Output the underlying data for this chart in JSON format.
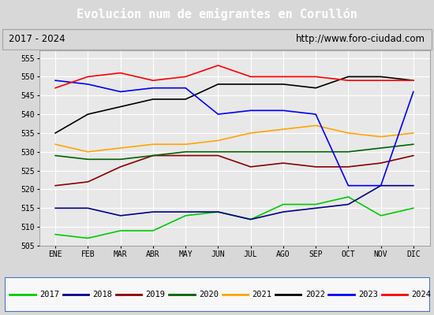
{
  "title": "Evolucion num de emigrantes en Corullón",
  "subtitle_left": "2017 - 2024",
  "subtitle_right": "http://www.foro-ciudad.com",
  "months": [
    "ENE",
    "FEB",
    "MAR",
    "ABR",
    "MAY",
    "JUN",
    "JUL",
    "AGO",
    "SEP",
    "OCT",
    "NOV",
    "DIC"
  ],
  "ylim": [
    505,
    557
  ],
  "yticks": [
    505,
    510,
    515,
    520,
    525,
    530,
    535,
    540,
    545,
    550,
    555
  ],
  "series": {
    "2017": {
      "color": "#00cc00",
      "data": [
        508,
        507,
        509,
        509,
        513,
        514,
        512,
        516,
        516,
        518,
        513,
        515
      ]
    },
    "2018": {
      "color": "#00008b",
      "data": [
        515,
        515,
        513,
        514,
        514,
        514,
        512,
        514,
        515,
        516,
        521,
        521
      ]
    },
    "2019": {
      "color": "#8b0000",
      "data": [
        521,
        522,
        526,
        529,
        529,
        529,
        526,
        527,
        526,
        526,
        527,
        529
      ]
    },
    "2020": {
      "color": "#006400",
      "data": [
        529,
        528,
        528,
        529,
        530,
        530,
        530,
        530,
        530,
        530,
        531,
        532
      ]
    },
    "2021": {
      "color": "#ffa500",
      "data": [
        532,
        530,
        531,
        532,
        532,
        533,
        535,
        536,
        537,
        535,
        534,
        535
      ]
    },
    "2022": {
      "color": "#000000",
      "data": [
        535,
        540,
        542,
        544,
        544,
        548,
        548,
        548,
        547,
        550,
        550,
        549
      ]
    },
    "2023": {
      "color": "#0000ff",
      "data": [
        549,
        548,
        546,
        547,
        547,
        540,
        541,
        541,
        540,
        521,
        521,
        546
      ]
    },
    "2024": {
      "color": "#ff0000",
      "data": [
        547,
        550,
        551,
        549,
        550,
        553,
        550,
        550,
        550,
        549,
        549,
        549
      ]
    }
  },
  "background_color": "#d8d8d8",
  "plot_bg_color": "#e8e8e8",
  "title_bg_color": "#4080c0",
  "title_color": "#ffffff",
  "grid_color": "#ffffff",
  "legend_border_color": "#4472c4",
  "legend_bg_color": "#f8f8f8"
}
